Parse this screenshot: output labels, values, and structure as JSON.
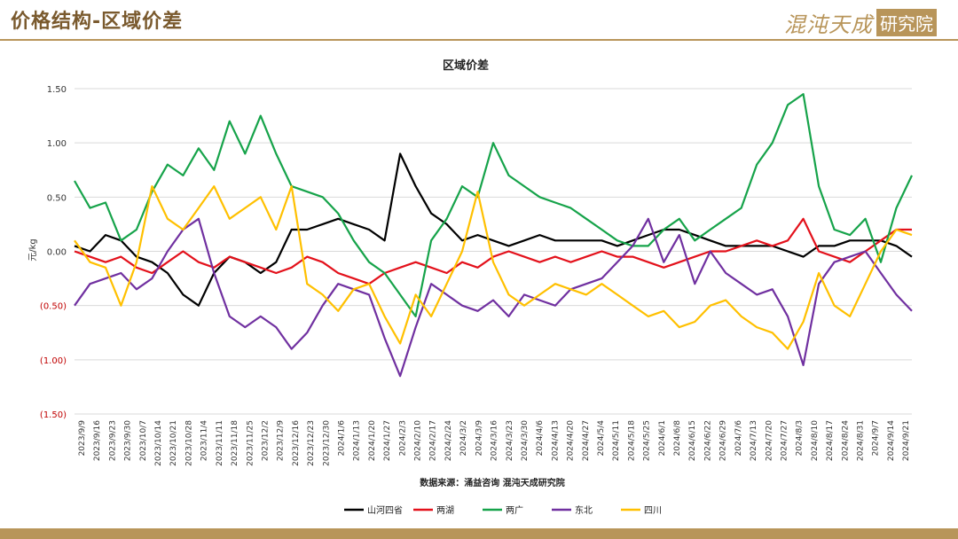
{
  "header": {
    "title": "价格结构-区域价差",
    "brand_main": "混沌天成",
    "brand_box": "研究院"
  },
  "chart_data": {
    "type": "line",
    "title": "区域价差",
    "ylabel": "元/kg",
    "xlabel": "",
    "source": "数据来源：涌益咨询 混沌天成研究院",
    "ylim": [
      -1.5,
      1.5
    ],
    "yticks": [
      1.5,
      1.0,
      0.5,
      0.0,
      -0.5,
      -1.0,
      -1.5
    ],
    "ytick_labels": [
      "1.50",
      "1.00",
      "0.50",
      "0.00",
      "(0.50)",
      "(1.00)",
      "(1.50)"
    ],
    "grid": true,
    "legend_position": "bottom",
    "x_start": "2023/9/9",
    "x_end": "2024/9/27",
    "x_tick_labels": [
      "2023/9/9",
      "2023/9/16",
      "2023/9/23",
      "2023/9/30",
      "2023/10/7",
      "2023/10/14",
      "2023/10/21",
      "2023/10/28",
      "2023/11/4",
      "2023/11/11",
      "2023/11/18",
      "2023/11/25",
      "2023/12/2",
      "2023/12/9",
      "2023/12/16",
      "2023/12/23",
      "2023/12/30",
      "2024/1/6",
      "2024/1/13",
      "2024/1/20",
      "2024/1/27",
      "2024/2/3",
      "2024/2/10",
      "2024/2/17",
      "2024/2/24",
      "2024/3/2",
      "2024/3/9",
      "2024/3/16",
      "2024/3/23",
      "2024/3/30",
      "2024/4/6",
      "2024/4/13",
      "2024/4/20",
      "2024/4/27",
      "2024/5/4",
      "2024/5/11",
      "2024/5/18",
      "2024/5/25",
      "2024/6/1",
      "2024/6/8",
      "2024/6/15",
      "2024/6/22",
      "2024/6/29",
      "2024/7/6",
      "2024/7/13",
      "2024/7/20",
      "2024/7/27",
      "2024/8/3",
      "2024/8/10",
      "2024/8/17",
      "2024/8/24",
      "2024/8/31",
      "2024/9/7",
      "2024/9/14",
      "2024/9/21"
    ],
    "series": [
      {
        "name": "山河四省",
        "color": "#000000",
        "values": [
          0.05,
          0.0,
          0.15,
          0.1,
          -0.05,
          -0.1,
          -0.2,
          -0.4,
          -0.5,
          -0.2,
          -0.05,
          -0.1,
          -0.2,
          -0.1,
          0.2,
          0.2,
          0.25,
          0.3,
          0.25,
          0.2,
          0.1,
          0.9,
          0.6,
          0.35,
          0.25,
          0.1,
          0.15,
          0.1,
          0.05,
          0.1,
          0.15,
          0.1,
          0.1,
          0.1,
          0.1,
          0.05,
          0.1,
          0.15,
          0.2,
          0.2,
          0.15,
          0.1,
          0.05,
          0.05,
          0.05,
          0.05,
          0.0,
          -0.05,
          0.05,
          0.05,
          0.1,
          0.1,
          0.1,
          0.05,
          -0.05
        ]
      },
      {
        "name": "两湖",
        "color": "#e3111b",
        "values": [
          0.0,
          -0.05,
          -0.1,
          -0.05,
          -0.15,
          -0.2,
          -0.1,
          0.0,
          -0.1,
          -0.15,
          -0.05,
          -0.1,
          -0.15,
          -0.2,
          -0.15,
          -0.05,
          -0.1,
          -0.2,
          -0.25,
          -0.3,
          -0.2,
          -0.15,
          -0.1,
          -0.15,
          -0.2,
          -0.1,
          -0.15,
          -0.05,
          0.0,
          -0.05,
          -0.1,
          -0.05,
          -0.1,
          -0.05,
          0.0,
          -0.05,
          -0.05,
          -0.1,
          -0.15,
          -0.1,
          -0.05,
          0.0,
          0.0,
          0.05,
          0.1,
          0.05,
          0.1,
          0.3,
          0.0,
          -0.05,
          -0.1,
          0.0,
          0.1,
          0.2,
          0.2
        ]
      },
      {
        "name": "两广",
        "color": "#16a34a",
        "values": [
          0.65,
          0.4,
          0.45,
          0.1,
          0.2,
          0.55,
          0.8,
          0.7,
          0.95,
          0.75,
          1.2,
          0.9,
          1.25,
          0.9,
          0.6,
          0.55,
          0.5,
          0.35,
          0.1,
          -0.1,
          -0.2,
          -0.4,
          -0.6,
          0.1,
          0.3,
          0.6,
          0.5,
          1.0,
          0.7,
          0.6,
          0.5,
          0.45,
          0.4,
          0.3,
          0.2,
          0.1,
          0.05,
          0.05,
          0.2,
          0.3,
          0.1,
          0.2,
          0.3,
          0.4,
          0.8,
          1.0,
          1.35,
          1.45,
          0.6,
          0.2,
          0.15,
          0.3,
          -0.1,
          0.4,
          0.7
        ]
      },
      {
        "name": "东北",
        "color": "#7030a0",
        "values": [
          -0.5,
          -0.3,
          -0.25,
          -0.2,
          -0.35,
          -0.25,
          0.0,
          0.2,
          0.3,
          -0.2,
          -0.6,
          -0.7,
          -0.6,
          -0.7,
          -0.9,
          -0.75,
          -0.5,
          -0.3,
          -0.35,
          -0.4,
          -0.8,
          -1.15,
          -0.7,
          -0.3,
          -0.4,
          -0.5,
          -0.55,
          -0.45,
          -0.6,
          -0.4,
          -0.45,
          -0.5,
          -0.35,
          -0.3,
          -0.25,
          -0.1,
          0.05,
          0.3,
          -0.1,
          0.15,
          -0.3,
          0.0,
          -0.2,
          -0.3,
          -0.4,
          -0.35,
          -0.6,
          -1.05,
          -0.3,
          -0.1,
          -0.05,
          0.0,
          -0.2,
          -0.4,
          -0.55
        ]
      },
      {
        "name": "四川",
        "color": "#ffc000",
        "values": [
          0.1,
          -0.1,
          -0.15,
          -0.5,
          -0.1,
          0.6,
          0.3,
          0.2,
          0.4,
          0.6,
          0.3,
          0.4,
          0.5,
          0.2,
          0.6,
          -0.3,
          -0.4,
          -0.55,
          -0.35,
          -0.3,
          -0.6,
          -0.85,
          -0.4,
          -0.6,
          -0.3,
          0.0,
          0.55,
          -0.1,
          -0.4,
          -0.5,
          -0.4,
          -0.3,
          -0.35,
          -0.4,
          -0.3,
          -0.4,
          -0.5,
          -0.6,
          -0.55,
          -0.7,
          -0.65,
          -0.5,
          -0.45,
          -0.6,
          -0.7,
          -0.75,
          -0.9,
          -0.65,
          -0.2,
          -0.5,
          -0.6,
          -0.3,
          0.0,
          0.2,
          0.15
        ]
      }
    ]
  }
}
